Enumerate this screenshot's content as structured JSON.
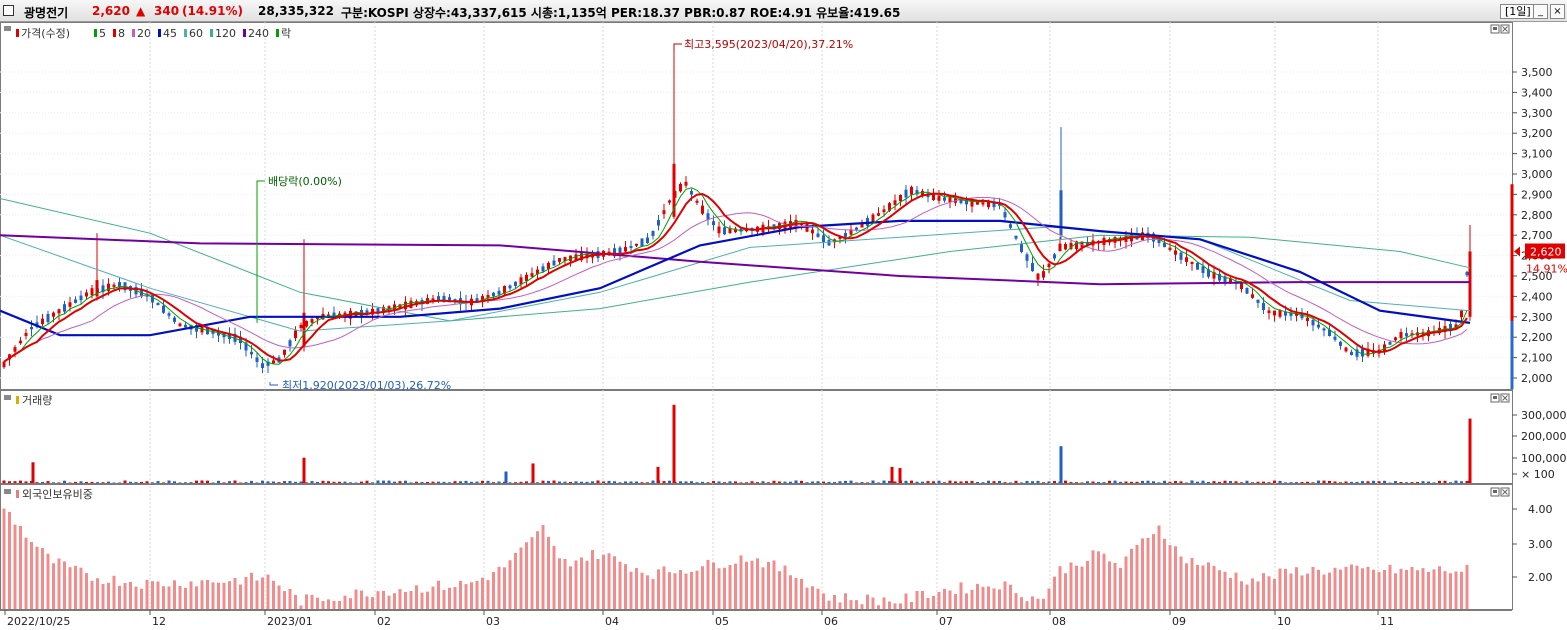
{
  "header": {
    "stock_name": "광명전기",
    "price": "2,620",
    "change_arrow": "▲",
    "change": "340",
    "change_pct": "(14.91%)",
    "volume": "28,335,322",
    "info": "구분:KOSPI 상장수:43,337,615 시총:1,135억 PER:18.37 PBR:0.87 ROE:4.91 유보율:419.65",
    "period": "[1일]",
    "minimize_label": "_",
    "close_label": "×"
  },
  "price_panel": {
    "legend": [
      {
        "label": "가격(수정)",
        "color": "#e00000"
      },
      {
        "label": "5",
        "color": "#00a000"
      },
      {
        "label": "8",
        "color": "#e00000"
      },
      {
        "label": "20",
        "color": "#c060c0"
      },
      {
        "label": "45",
        "color": "#0010c0"
      },
      {
        "label": "60",
        "color": "#50b0b0"
      },
      {
        "label": "120",
        "color": "#40b090"
      },
      {
        "label": "240",
        "color": "#7000a0"
      },
      {
        "label": "락",
        "color": "#00a000"
      }
    ],
    "y_ticks": [
      "3,500",
      "3,400",
      "3,300",
      "3,200",
      "3,100",
      "3,000",
      "2,900",
      "2,800",
      "2,700",
      "2,600",
      "2,500",
      "2,400",
      "2,300",
      "2,200",
      "2,100",
      "2,000"
    ],
    "price_tag": "2,620",
    "pct_tag": "14.91%",
    "annotations": {
      "high": "최고3,595(2023/04/20),37.21%",
      "low": "최저1,920(2023/01/03),26.72%",
      "dividend": "배당락(0.00%)"
    }
  },
  "volume_panel": {
    "title": "거래량",
    "y_ticks": [
      "300,000",
      "200,000",
      "100,000",
      "× 100"
    ]
  },
  "foreign_panel": {
    "title": "외국인보유비중",
    "y_ticks": [
      "4.00",
      "3.00",
      "2.00"
    ]
  },
  "x_axis": {
    "labels": [
      "2022/10/25",
      "12",
      "2023/01",
      "02",
      "03",
      "04",
      "05",
      "06",
      "07",
      "08",
      "09",
      "10",
      "11"
    ]
  },
  "chart_data": {
    "type": "candlestick",
    "x_range": [
      "2022/10/25",
      "2023/11"
    ],
    "y_range": [
      1920,
      3595
    ],
    "series": [
      {
        "name": "가격(수정)",
        "points": [
          [
            0,
            2040
          ],
          [
            30,
            2240
          ],
          [
            60,
            2330
          ],
          [
            90,
            2420
          ],
          [
            120,
            2460
          ],
          [
            150,
            2400
          ],
          [
            180,
            2260
          ],
          [
            210,
            2230
          ],
          [
            240,
            2190
          ],
          [
            262,
            2060
          ],
          [
            280,
            2090
          ],
          [
            300,
            2250
          ],
          [
            320,
            2300
          ],
          [
            350,
            2310
          ],
          [
            380,
            2330
          ],
          [
            410,
            2360
          ],
          [
            440,
            2390
          ],
          [
            470,
            2370
          ],
          [
            500,
            2420
          ],
          [
            530,
            2500
          ],
          [
            560,
            2580
          ],
          [
            590,
            2600
          ],
          [
            620,
            2620
          ],
          [
            650,
            2680
          ],
          [
            670,
            2870
          ],
          [
            685,
            2960
          ],
          [
            700,
            2840
          ],
          [
            720,
            2720
          ],
          [
            760,
            2730
          ],
          [
            800,
            2760
          ],
          [
            830,
            2660
          ],
          [
            860,
            2740
          ],
          [
            890,
            2840
          ],
          [
            910,
            2920
          ],
          [
            940,
            2880
          ],
          [
            970,
            2860
          ],
          [
            1000,
            2850
          ],
          [
            1020,
            2650
          ],
          [
            1040,
            2480
          ],
          [
            1060,
            2640
          ],
          [
            1090,
            2660
          ],
          [
            1120,
            2680
          ],
          [
            1150,
            2700
          ],
          [
            1180,
            2600
          ],
          [
            1210,
            2510
          ],
          [
            1240,
            2460
          ],
          [
            1270,
            2320
          ],
          [
            1300,
            2310
          ],
          [
            1330,
            2220
          ],
          [
            1350,
            2120
          ],
          [
            1380,
            2130
          ],
          [
            1400,
            2210
          ],
          [
            1430,
            2220
          ],
          [
            1460,
            2260
          ],
          [
            1470,
            2620
          ]
        ]
      },
      {
        "name": "45",
        "points": [
          [
            0,
            2330
          ],
          [
            60,
            2210
          ],
          [
            150,
            2210
          ],
          [
            250,
            2300
          ],
          [
            400,
            2300
          ],
          [
            500,
            2340
          ],
          [
            600,
            2440
          ],
          [
            700,
            2650
          ],
          [
            800,
            2740
          ],
          [
            900,
            2770
          ],
          [
            1000,
            2770
          ],
          [
            1100,
            2720
          ],
          [
            1200,
            2680
          ],
          [
            1300,
            2520
          ],
          [
            1380,
            2330
          ],
          [
            1470,
            2270
          ]
        ]
      },
      {
        "name": "240",
        "points": [
          [
            0,
            2700
          ],
          [
            200,
            2660
          ],
          [
            500,
            2650
          ],
          [
            700,
            2570
          ],
          [
            900,
            2500
          ],
          [
            1100,
            2460
          ],
          [
            1300,
            2470
          ],
          [
            1470,
            2470
          ]
        ]
      },
      {
        "name": "120",
        "points": [
          [
            0,
            2880
          ],
          [
            150,
            2710
          ],
          [
            300,
            2420
          ],
          [
            450,
            2280
          ],
          [
            600,
            2340
          ],
          [
            750,
            2470
          ],
          [
            950,
            2620
          ],
          [
            1100,
            2700
          ],
          [
            1250,
            2690
          ],
          [
            1400,
            2620
          ],
          [
            1470,
            2540
          ]
        ]
      },
      {
        "name": "60",
        "points": [
          [
            0,
            2700
          ],
          [
            150,
            2440
          ],
          [
            300,
            2230
          ],
          [
            450,
            2280
          ],
          [
            600,
            2420
          ],
          [
            750,
            2640
          ],
          [
            900,
            2690
          ],
          [
            1050,
            2740
          ],
          [
            1200,
            2680
          ],
          [
            1350,
            2380
          ],
          [
            1470,
            2330
          ]
        ]
      }
    ],
    "volume_spikes": [
      [
        33,
        90000
      ],
      [
        304,
        110000
      ],
      [
        506,
        50000
      ],
      [
        533,
        85000
      ],
      [
        658,
        70000
      ],
      [
        674,
        340000
      ],
      [
        892,
        70000
      ],
      [
        900,
        65000
      ],
      [
        1061,
        160000
      ],
      [
        1470,
        280000
      ]
    ],
    "foreign_ownership_pct_range": [
      1.0,
      4.2
    ]
  }
}
